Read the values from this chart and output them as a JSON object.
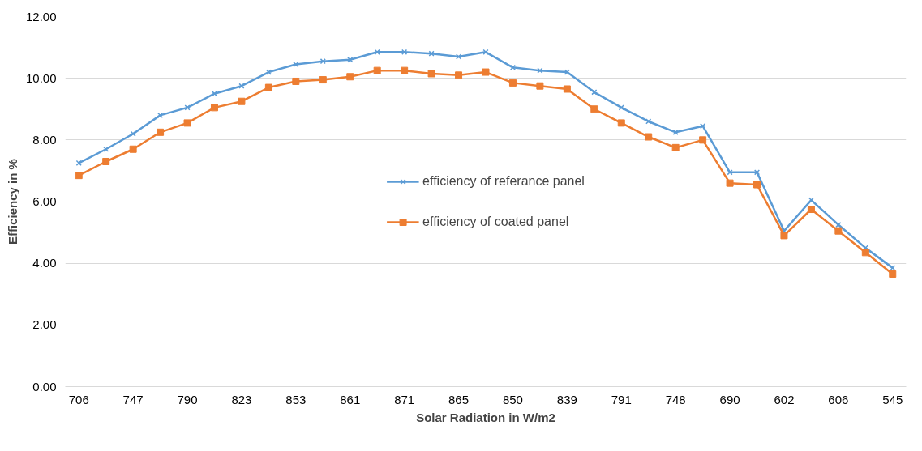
{
  "chart_data": {
    "type": "line",
    "xlabel": "Solar Radiation in W/m2",
    "ylabel": "Efficiency in %",
    "categories": [
      "706",
      null,
      "747",
      null,
      "790",
      null,
      "823",
      null,
      "853",
      null,
      "861",
      null,
      "871",
      null,
      "865",
      null,
      "850",
      null,
      "839",
      null,
      "791",
      null,
      "748",
      null,
      "690",
      null,
      "602",
      null,
      "606",
      null,
      "545"
    ],
    "series": [
      {
        "name": "efficiency of referance panel",
        "color": "#5b9bd5",
        "marker": "cross",
        "values": [
          7.25,
          7.7,
          8.2,
          8.8,
          9.05,
          9.5,
          9.75,
          10.2,
          10.45,
          10.55,
          10.6,
          10.85,
          10.85,
          10.8,
          10.7,
          10.85,
          10.35,
          10.25,
          10.2,
          9.55,
          9.05,
          8.6,
          8.25,
          8.45,
          6.95,
          6.95,
          5.05,
          6.05,
          5.25,
          4.5,
          3.85
        ]
      },
      {
        "name": "efficiency of coated panel",
        "color": "#ed7d31",
        "marker": "square",
        "values": [
          6.85,
          7.3,
          7.7,
          8.25,
          8.55,
          9.05,
          9.25,
          9.7,
          9.9,
          9.95,
          10.05,
          10.25,
          10.25,
          10.15,
          10.1,
          10.2,
          9.85,
          9.75,
          9.65,
          9.0,
          8.55,
          8.1,
          7.75,
          8.0,
          6.6,
          6.55,
          4.9,
          5.75,
          5.05,
          4.35,
          3.65
        ]
      }
    ],
    "ylim": [
      0,
      12
    ],
    "yticks": [
      {
        "value": 0,
        "label": "0.00"
      },
      {
        "value": 2,
        "label": "2.00"
      },
      {
        "value": 4,
        "label": "4.00"
      },
      {
        "value": 6,
        "label": "6.00"
      },
      {
        "value": 8,
        "label": "8.00"
      },
      {
        "value": 10,
        "label": "10.00"
      },
      {
        "value": 12,
        "label": "12.00"
      }
    ],
    "grid": "y",
    "legend": "center",
    "line_style": "solid"
  }
}
